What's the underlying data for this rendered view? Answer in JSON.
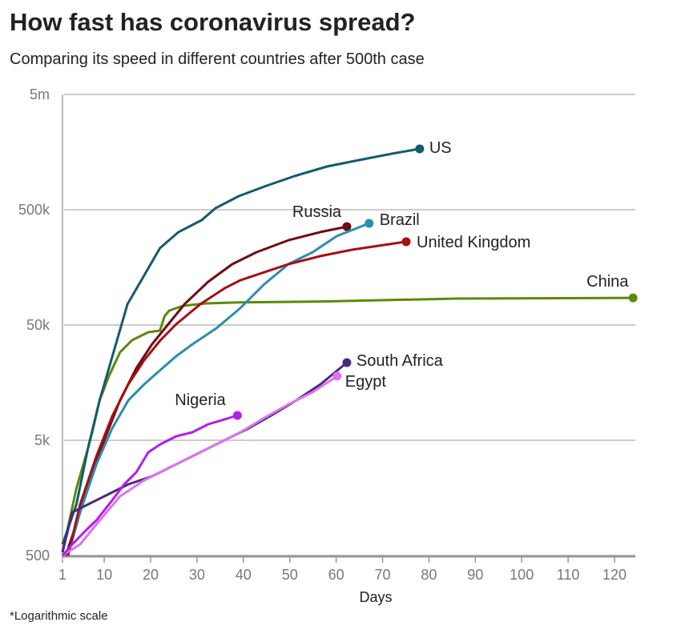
{
  "chart_data": {
    "type": "line",
    "title": "How fast has coronavirus spread?",
    "subtitle": "Comparing its speed in different countries after 500th case",
    "xlabel": "Days",
    "ylabel": "",
    "note": "*Logarithmic scale",
    "yscale": "log",
    "xlim": [
      1,
      124
    ],
    "ylim": [
      500,
      5000000
    ],
    "xticks": [
      1,
      10,
      20,
      30,
      40,
      50,
      60,
      70,
      80,
      90,
      100,
      110,
      120
    ],
    "yticks": [
      {
        "value": 500,
        "label": "500"
      },
      {
        "value": 5000,
        "label": "5k"
      },
      {
        "value": 50000,
        "label": "50k"
      },
      {
        "value": 500000,
        "label": "500k"
      },
      {
        "value": 5000000,
        "label": "5m"
      }
    ],
    "grid": true,
    "legend": "direct labels at line ends",
    "series": [
      {
        "name": "China",
        "color": "#5b8a0a",
        "x": [
          1,
          4,
          6.5,
          7.4,
          9,
          11,
          13.4,
          16,
          19.5,
          22,
          23,
          24,
          27,
          32,
          39,
          57,
          86,
          124
        ],
        "y": [
          533,
          1915,
          4260,
          5870,
          11100,
          18000,
          29000,
          36900,
          43300,
          44700,
          59600,
          66700,
          73400,
          77000,
          78500,
          80000,
          84800,
          86000
        ]
      },
      {
        "name": "US",
        "color": "#155a6f",
        "x": [
          1,
          4,
          6.5,
          9,
          12,
          15,
          19,
          22,
          26,
          31,
          34,
          39,
          45,
          51,
          58,
          65,
          72,
          78
        ],
        "y": [
          625,
          1390,
          4260,
          11100,
          29000,
          75800,
          143500,
          232000,
          320000,
          406000,
          516000,
          656000,
          808000,
          979000,
          1186000,
          1349000,
          1531000,
          1687000
        ]
      },
      {
        "name": "Russia",
        "color": "#6e0d12",
        "x": [
          1.7,
          4.8,
          7.4,
          10,
          13.4,
          16.9,
          20.3,
          23.8,
          27.3,
          32.4,
          37.6,
          42.8,
          49.7,
          56.6,
          62.3
        ],
        "y": [
          500,
          1186,
          2637,
          5000,
          11100,
          21100,
          34000,
          50800,
          75800,
          118600,
          168600,
          214000,
          272000,
          320000,
          357000
        ]
      },
      {
        "name": "Brazil",
        "color": "#2b8db0",
        "x": [
          2.2,
          4.8,
          8.3,
          11.7,
          15.2,
          18.6,
          22.1,
          25.5,
          29,
          34.2,
          39.3,
          44.5,
          49.7,
          54.9,
          60.1,
          67.1
        ],
        "y": [
          500,
          1186,
          3097,
          6350,
          11100,
          15300,
          20400,
          26800,
          34000,
          46900,
          70000,
          113000,
          168600,
          214000,
          295000,
          381000
        ]
      },
      {
        "name": "United Kingdom",
        "color": "#a50f15",
        "x": [
          2.2,
          4.8,
          8.3,
          11.7,
          15.2,
          18.6,
          22.1,
          25.5,
          30.7,
          35.9,
          39.3,
          44.5,
          49.7,
          56.6,
          63.5,
          75.1
        ],
        "y": [
          500,
          1390,
          3630,
          8080,
          15300,
          24700,
          36900,
          50800,
          75800,
          104000,
          122000,
          143500,
          168600,
          198000,
          225000,
          264000
        ]
      },
      {
        "name": "South Africa",
        "color": "#4a2b7c",
        "x": [
          1,
          3.1,
          6.5,
          10,
          15.2,
          20.3,
          25.5,
          30.7,
          35.9,
          41.1,
          46.3,
          51.4,
          56.6,
          62.3
        ],
        "y": [
          533,
          1186,
          1390,
          1632,
          2074,
          2434,
          3097,
          3934,
          5000,
          6350,
          8340,
          11100,
          15300,
          23600
        ]
      },
      {
        "name": "Egypt",
        "color": "#df73f0",
        "x": [
          1,
          4.8,
          8.3,
          13.4,
          18.6,
          23.8,
          29,
          34.2,
          39.3,
          44.5,
          49.7,
          54.9,
          60.2
        ],
        "y": [
          500,
          625,
          933,
          1632,
          2248,
          2856,
          3630,
          4614,
          5870,
          7820,
          10270,
          13060,
          18000
        ]
      },
      {
        "name": "Nigeria",
        "color": "#b01ff0",
        "x": [
          1,
          3.1,
          4.8,
          6.5,
          8.3,
          11.7,
          14.3,
          16.9,
          19.5,
          22.1,
          25.5,
          29,
          32.4,
          35.9,
          38.7
        ],
        "y": [
          500,
          625,
          734,
          861,
          1011,
          1507,
          2074,
          2637,
          3934,
          4614,
          5420,
          5870,
          6880,
          7590,
          8210
        ]
      }
    ]
  }
}
